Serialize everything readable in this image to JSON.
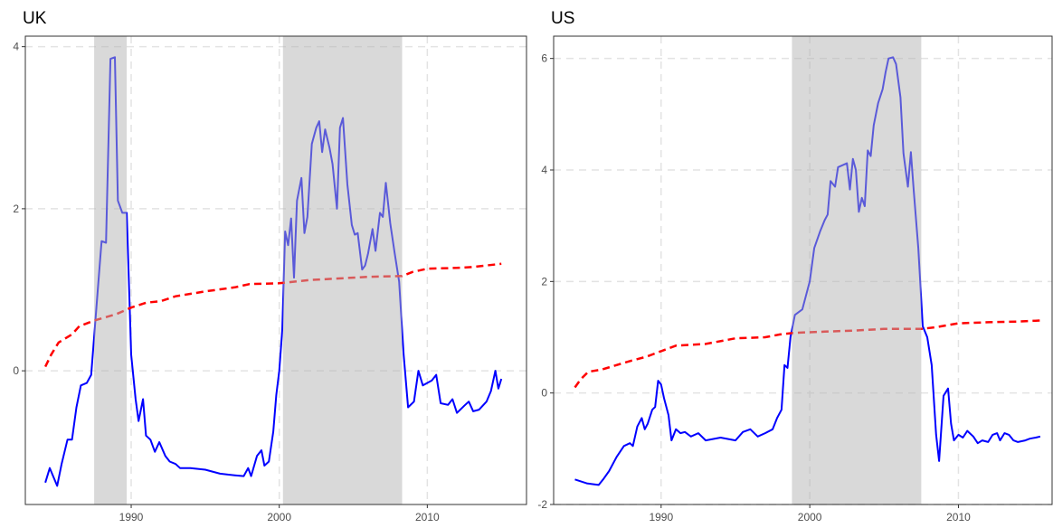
{
  "chart_data": [
    {
      "type": "line",
      "title": "UK",
      "xlim": [
        1982.85,
        2016.7
      ],
      "ylim": [
        -1.65,
        4.13
      ],
      "xticks": [
        1990,
        2000,
        2010
      ],
      "yticks": [
        0,
        2,
        4
      ],
      "grid": true,
      "shaded_regions": [
        [
          1987.5,
          1989.7
        ],
        [
          2000.25,
          2008.3
        ]
      ],
      "series": [
        {
          "color": "#0000ff",
          "line_style": "solid",
          "x": [
            1984.2,
            1984.5,
            1985.0,
            1985.3,
            1985.7,
            1986.0,
            1986.3,
            1986.6,
            1987.0,
            1987.3,
            1987.7,
            1988.0,
            1988.3,
            1988.6,
            1988.9,
            1989.1,
            1989.4,
            1989.7,
            1990.0,
            1990.3,
            1990.5,
            1990.8,
            1991.0,
            1991.3,
            1991.6,
            1991.9,
            1992.3,
            1992.6,
            1993.0,
            1993.3,
            1994.0,
            1995.0,
            1996.0,
            1997.0,
            1997.6,
            1997.9,
            1998.1,
            1998.5,
            1998.8,
            1999.0,
            1999.3,
            1999.6,
            1999.8,
            2000.0,
            2000.2,
            2000.4,
            2000.6,
            2000.8,
            2001.0,
            2001.2,
            2001.5,
            2001.7,
            2001.9,
            2002.2,
            2002.5,
            2002.7,
            2002.9,
            2003.1,
            2003.4,
            2003.6,
            2003.9,
            2004.1,
            2004.3,
            2004.6,
            2004.9,
            2005.1,
            2005.3,
            2005.6,
            2005.8,
            2006.0,
            2006.3,
            2006.5,
            2006.8,
            2007.0,
            2007.2,
            2007.5,
            2007.8,
            2008.1,
            2008.4,
            2008.7,
            2009.1,
            2009.4,
            2009.7,
            2010.3,
            2010.6,
            2010.9,
            2011.4,
            2011.7,
            2012.0,
            2012.5,
            2012.8,
            2013.1,
            2013.5,
            2014.0,
            2014.3,
            2014.6,
            2014.8,
            2015.0
          ],
          "values": [
            -1.38,
            -1.2,
            -1.42,
            -1.15,
            -0.85,
            -0.85,
            -0.45,
            -0.18,
            -0.15,
            -0.05,
            0.9,
            1.6,
            1.58,
            3.85,
            3.87,
            2.1,
            1.95,
            1.95,
            0.2,
            -0.35,
            -0.62,
            -0.35,
            -0.8,
            -0.85,
            -1.0,
            -0.88,
            -1.05,
            -1.12,
            -1.15,
            -1.2,
            -1.2,
            -1.22,
            -1.27,
            -1.29,
            -1.3,
            -1.2,
            -1.3,
            -1.05,
            -0.98,
            -1.17,
            -1.12,
            -0.75,
            -0.3,
            0.0,
            0.5,
            1.72,
            1.55,
            1.88,
            1.15,
            2.1,
            2.38,
            1.7,
            1.9,
            2.8,
            3.0,
            3.08,
            2.7,
            2.98,
            2.75,
            2.55,
            2.0,
            3.0,
            3.12,
            2.3,
            1.8,
            1.68,
            1.7,
            1.25,
            1.3,
            1.45,
            1.75,
            1.48,
            1.95,
            1.9,
            2.32,
            1.82,
            1.45,
            1.1,
            0.2,
            -0.45,
            -0.38,
            0.0,
            -0.18,
            -0.12,
            -0.05,
            -0.4,
            -0.42,
            -0.35,
            -0.52,
            -0.43,
            -0.38,
            -0.5,
            -0.48,
            -0.38,
            -0.25,
            0.0,
            -0.22,
            -0.1
          ]
        },
        {
          "color": "#ff0000",
          "line_style": "dashed",
          "x": [
            1984.2,
            1984.6,
            1985.1,
            1986.0,
            1986.5,
            1987.5,
            1989.0,
            1990.0,
            1991.0,
            1992.0,
            1993.0,
            1995.0,
            1997.0,
            1998.0,
            2000.0,
            2002.0,
            2004.0,
            2006.0,
            2008.3,
            2009.0,
            2010.0,
            2012.0,
            2013.0,
            2015.0
          ],
          "values": [
            0.05,
            0.2,
            0.35,
            0.45,
            0.55,
            0.62,
            0.7,
            0.78,
            0.84,
            0.86,
            0.92,
            0.98,
            1.03,
            1.07,
            1.08,
            1.12,
            1.14,
            1.16,
            1.17,
            1.22,
            1.26,
            1.27,
            1.28,
            1.32
          ]
        }
      ]
    },
    {
      "type": "line",
      "title": "US",
      "xlim": [
        1982.77,
        2016.3
      ],
      "ylim": [
        -2,
        6.4
      ],
      "xticks": [
        1990,
        2000,
        2010
      ],
      "yticks": [
        -2,
        0,
        2,
        4,
        6
      ],
      "grid": true,
      "shaded_regions": [
        [
          1998.8,
          2007.5
        ]
      ],
      "series": [
        {
          "color": "#0000ff",
          "line_style": "solid",
          "x": [
            1984.2,
            1985.0,
            1985.8,
            1986.1,
            1986.5,
            1987.0,
            1987.5,
            1987.9,
            1988.1,
            1988.4,
            1988.7,
            1988.9,
            1989.1,
            1989.4,
            1989.6,
            1989.8,
            1990.0,
            1990.2,
            1990.5,
            1990.7,
            1991.0,
            1991.3,
            1991.6,
            1992.0,
            1992.5,
            1993.0,
            1994.0,
            1995.0,
            1995.5,
            1996.0,
            1996.5,
            1997.0,
            1997.5,
            1997.8,
            1998.1,
            1998.3,
            1998.5,
            1998.7,
            1999.0,
            1999.5,
            2000.0,
            2000.3,
            2000.7,
            2001.0,
            2001.2,
            2001.4,
            2001.7,
            2001.9,
            2002.5,
            2002.7,
            2002.9,
            2003.1,
            2003.3,
            2003.5,
            2003.7,
            2003.9,
            2004.1,
            2004.3,
            2004.6,
            2004.9,
            2005.1,
            2005.3,
            2005.6,
            2005.8,
            2006.1,
            2006.3,
            2006.6,
            2006.8,
            2007.0,
            2007.3,
            2007.6,
            2007.9,
            2008.2,
            2008.5,
            2008.7,
            2009.0,
            2009.3,
            2009.5,
            2009.7,
            2010.0,
            2010.3,
            2010.6,
            2011.0,
            2011.3,
            2011.6,
            2012.0,
            2012.3,
            2012.6,
            2012.8,
            2013.1,
            2013.4,
            2013.7,
            2014.0,
            2014.5,
            2014.8,
            2015.2,
            2015.5
          ],
          "values": [
            -1.55,
            -1.62,
            -1.65,
            -1.55,
            -1.4,
            -1.15,
            -0.95,
            -0.9,
            -0.95,
            -0.6,
            -0.45,
            -0.65,
            -0.55,
            -0.3,
            -0.25,
            0.22,
            0.15,
            -0.1,
            -0.4,
            -0.85,
            -0.65,
            -0.72,
            -0.7,
            -0.78,
            -0.72,
            -0.85,
            -0.8,
            -0.85,
            -0.7,
            -0.65,
            -0.78,
            -0.72,
            -0.65,
            -0.45,
            -0.3,
            0.5,
            0.45,
            1.0,
            1.4,
            1.5,
            2.0,
            2.6,
            2.9,
            3.1,
            3.2,
            3.8,
            3.7,
            4.05,
            4.12,
            3.65,
            4.2,
            4.0,
            3.25,
            3.5,
            3.35,
            4.35,
            4.25,
            4.8,
            5.2,
            5.45,
            5.75,
            6.0,
            6.02,
            5.9,
            5.3,
            4.3,
            3.7,
            4.32,
            3.6,
            2.6,
            1.2,
            1.0,
            0.5,
            -0.75,
            -1.22,
            -0.05,
            0.08,
            -0.55,
            -0.85,
            -0.75,
            -0.8,
            -0.68,
            -0.78,
            -0.9,
            -0.85,
            -0.88,
            -0.75,
            -0.72,
            -0.85,
            -0.72,
            -0.75,
            -0.85,
            -0.88,
            -0.85,
            -0.82,
            -0.8,
            -0.78
          ]
        },
        {
          "color": "#ff0000",
          "line_style": "dashed",
          "x": [
            1984.2,
            1984.6,
            1985.1,
            1986.0,
            1987.0,
            1988.0,
            1989.0,
            1990.0,
            1991.0,
            1993.0,
            1995.0,
            1997.0,
            1998.0,
            1999.0,
            2001.0,
            2003.0,
            2005.0,
            2007.5,
            2008.5,
            2010.0,
            2012.0,
            2014.0,
            2015.5
          ],
          "values": [
            0.1,
            0.25,
            0.38,
            0.42,
            0.5,
            0.58,
            0.65,
            0.75,
            0.85,
            0.88,
            0.98,
            1.0,
            1.05,
            1.08,
            1.1,
            1.12,
            1.15,
            1.15,
            1.18,
            1.25,
            1.27,
            1.28,
            1.3
          ]
        }
      ]
    }
  ]
}
